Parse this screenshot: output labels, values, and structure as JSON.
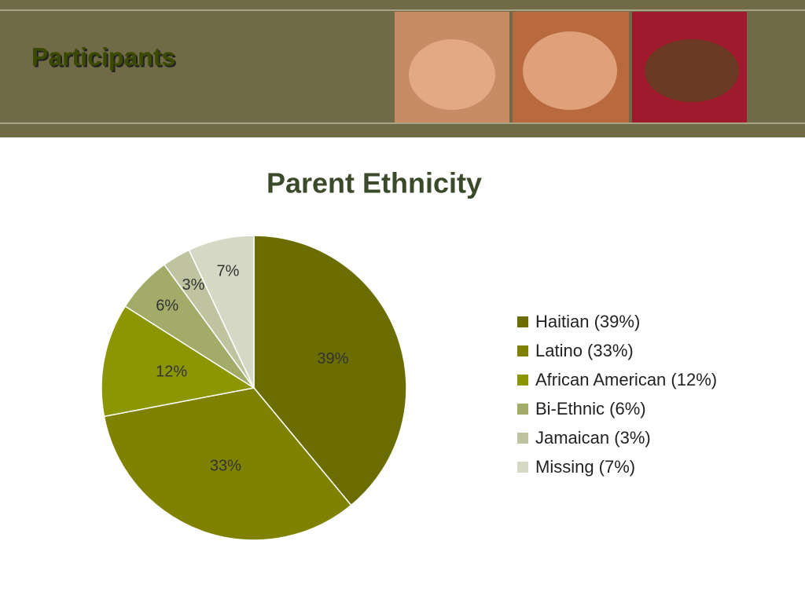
{
  "header": {
    "title": "Participants"
  },
  "chart_data": {
    "type": "pie",
    "title": "Parent Ethnicity",
    "categories": [
      "Haitian (39%)",
      "Latino (33%)",
      "African American (12%)",
      "Bi-Ethnic (6%)",
      "Jamaican (3%)",
      "Missing (7%)"
    ],
    "values": [
      39,
      33,
      12,
      6,
      3,
      7
    ],
    "value_labels": [
      "39%",
      "33%",
      "12%",
      "6%",
      "3%",
      "7%"
    ],
    "colors": [
      "#6c6d00",
      "#7f8200",
      "#8b9602",
      "#a3ab68",
      "#bfc3a0",
      "#d5d8c4"
    ],
    "legend": "right"
  }
}
